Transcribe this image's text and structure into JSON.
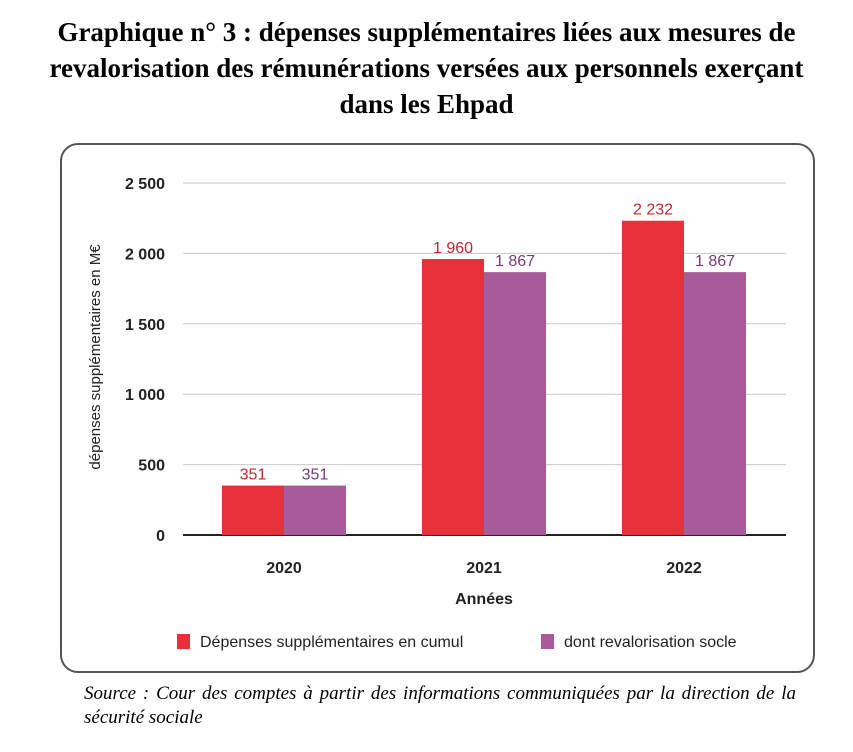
{
  "title": "Graphique n° 3 : dépenses supplémentaires liées aux mesures de revalorisation des rémunérations versées aux personnels exerçant dans les Ehpad",
  "source": "Source : Cour des comptes à partir des informations communiquées par la direction de la sécurité sociale",
  "chart_data": {
    "type": "bar",
    "categories": [
      "2020",
      "2021",
      "2022"
    ],
    "series": [
      {
        "name": "Dépenses supplémentaires en cumul",
        "values": [
          351,
          1960,
          2232
        ],
        "labels": [
          "351",
          "1 960",
          "2 232"
        ],
        "color": "#e8303a",
        "label_color": "#c0282f"
      },
      {
        "name": "dont revalorisation socle",
        "values": [
          351,
          1867,
          1867
        ],
        "labels": [
          "351",
          "1 867",
          "1 867"
        ],
        "color": "#a85a9a",
        "label_color": "#7a3a7a"
      }
    ],
    "xlabel": "Années",
    "ylabel": "dépenses supplémentaires en M€",
    "ylim": [
      0,
      2500
    ],
    "yticks": [
      0,
      500,
      1000,
      1500,
      2000,
      2500
    ],
    "ytick_labels": [
      "0",
      "500",
      "1 000",
      "1 500",
      "2 000",
      "2 500"
    ],
    "grid": true,
    "legend_position": "bottom"
  }
}
